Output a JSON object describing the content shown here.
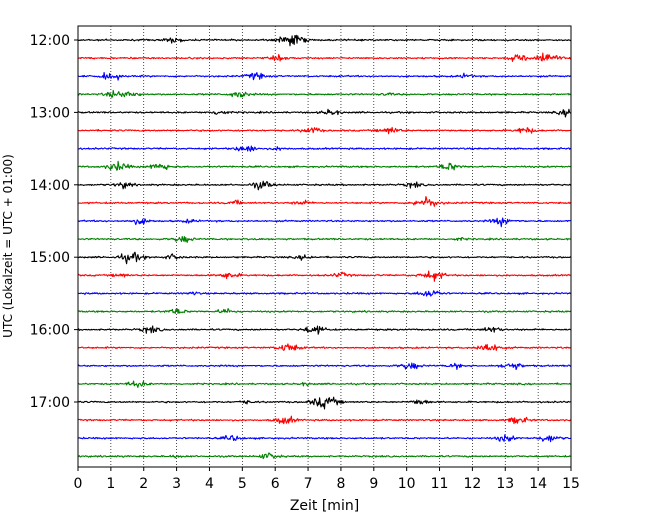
{
  "chart_data": {
    "type": "line",
    "title": "",
    "xlabel": "Zeit  [min]",
    "ylabel": "UTC (Lokalzeit = UTC + 01:00)",
    "xlim": [
      0,
      15
    ],
    "x_ticks": [
      "0",
      "1",
      "2",
      "3",
      "4",
      "5",
      "6",
      "7",
      "8",
      "9",
      "10",
      "11",
      "12",
      "13",
      "14",
      "15"
    ],
    "y_tick_labels": [
      "12:00",
      "13:00",
      "14:00",
      "15:00",
      "16:00",
      "17:00"
    ],
    "grid": "vertical dotted",
    "trace_interval_minutes": 15,
    "start_time": "12:00",
    "trace_count": 24,
    "colors": [
      "#000000",
      "#ff0000",
      "#0000ff",
      "#008000"
    ],
    "events": [
      [
        [
          2.9,
          0.45
        ],
        [
          6.5,
          0.9
        ]
      ],
      [
        [
          6.1,
          0.35
        ],
        [
          14.2,
          0.9
        ],
        [
          13.4,
          0.5
        ]
      ],
      [
        [
          1.0,
          0.6
        ],
        [
          5.4,
          0.5
        ],
        [
          11.8,
          0.3
        ]
      ],
      [
        [
          1.1,
          0.5
        ],
        [
          1.6,
          0.45
        ],
        [
          4.9,
          0.55
        ],
        [
          9.4,
          0.2
        ]
      ],
      [
        [
          4.3,
          0.4
        ],
        [
          7.7,
          0.45
        ],
        [
          14.9,
          0.5
        ]
      ],
      [
        [
          7.1,
          0.5
        ],
        [
          9.5,
          0.55
        ],
        [
          13.6,
          0.5
        ]
      ],
      [
        [
          5.1,
          0.6
        ],
        [
          6.1,
          0.25
        ]
      ],
      [
        [
          1.2,
          0.7
        ],
        [
          2.5,
          0.6
        ],
        [
          11.3,
          0.6
        ]
      ],
      [
        [
          1.4,
          0.45
        ],
        [
          5.6,
          0.6
        ],
        [
          10.2,
          0.4
        ]
      ],
      [
        [
          4.8,
          0.3
        ],
        [
          6.8,
          0.35
        ],
        [
          10.6,
          0.85
        ]
      ],
      [
        [
          1.9,
          0.5
        ],
        [
          3.4,
          0.25
        ],
        [
          12.9,
          0.6
        ]
      ],
      [
        [
          3.2,
          0.5
        ],
        [
          5.3,
          0.2
        ],
        [
          11.6,
          0.2
        ]
      ],
      [
        [
          1.6,
          0.75
        ],
        [
          2.9,
          0.4
        ],
        [
          6.9,
          0.35
        ]
      ],
      [
        [
          1.3,
          0.3
        ],
        [
          4.6,
          0.5
        ],
        [
          8.0,
          0.35
        ],
        [
          10.8,
          0.75
        ]
      ],
      [
        [
          10.7,
          0.65
        ],
        [
          3.5,
          0.2
        ]
      ],
      [
        [
          3.0,
          0.45
        ],
        [
          4.5,
          0.4
        ]
      ],
      [
        [
          2.2,
          0.5
        ],
        [
          7.2,
          0.65
        ],
        [
          12.6,
          0.45
        ]
      ],
      [
        [
          6.4,
          0.65
        ],
        [
          12.5,
          0.75
        ]
      ],
      [
        [
          10.1,
          0.55
        ],
        [
          13.2,
          0.6
        ],
        [
          11.5,
          0.35
        ]
      ],
      [
        [
          1.8,
          0.5
        ],
        [
          6.9,
          0.2
        ]
      ],
      [
        [
          7.5,
          0.9
        ],
        [
          10.4,
          0.45
        ],
        [
          5.1,
          0.25
        ]
      ],
      [
        [
          6.3,
          0.6
        ],
        [
          13.4,
          0.55
        ]
      ],
      [
        [
          4.7,
          0.45
        ],
        [
          13.0,
          0.5
        ],
        [
          14.3,
          0.6
        ]
      ],
      [
        [
          5.8,
          0.5
        ],
        [
          3.0,
          0.2
        ]
      ]
    ]
  }
}
